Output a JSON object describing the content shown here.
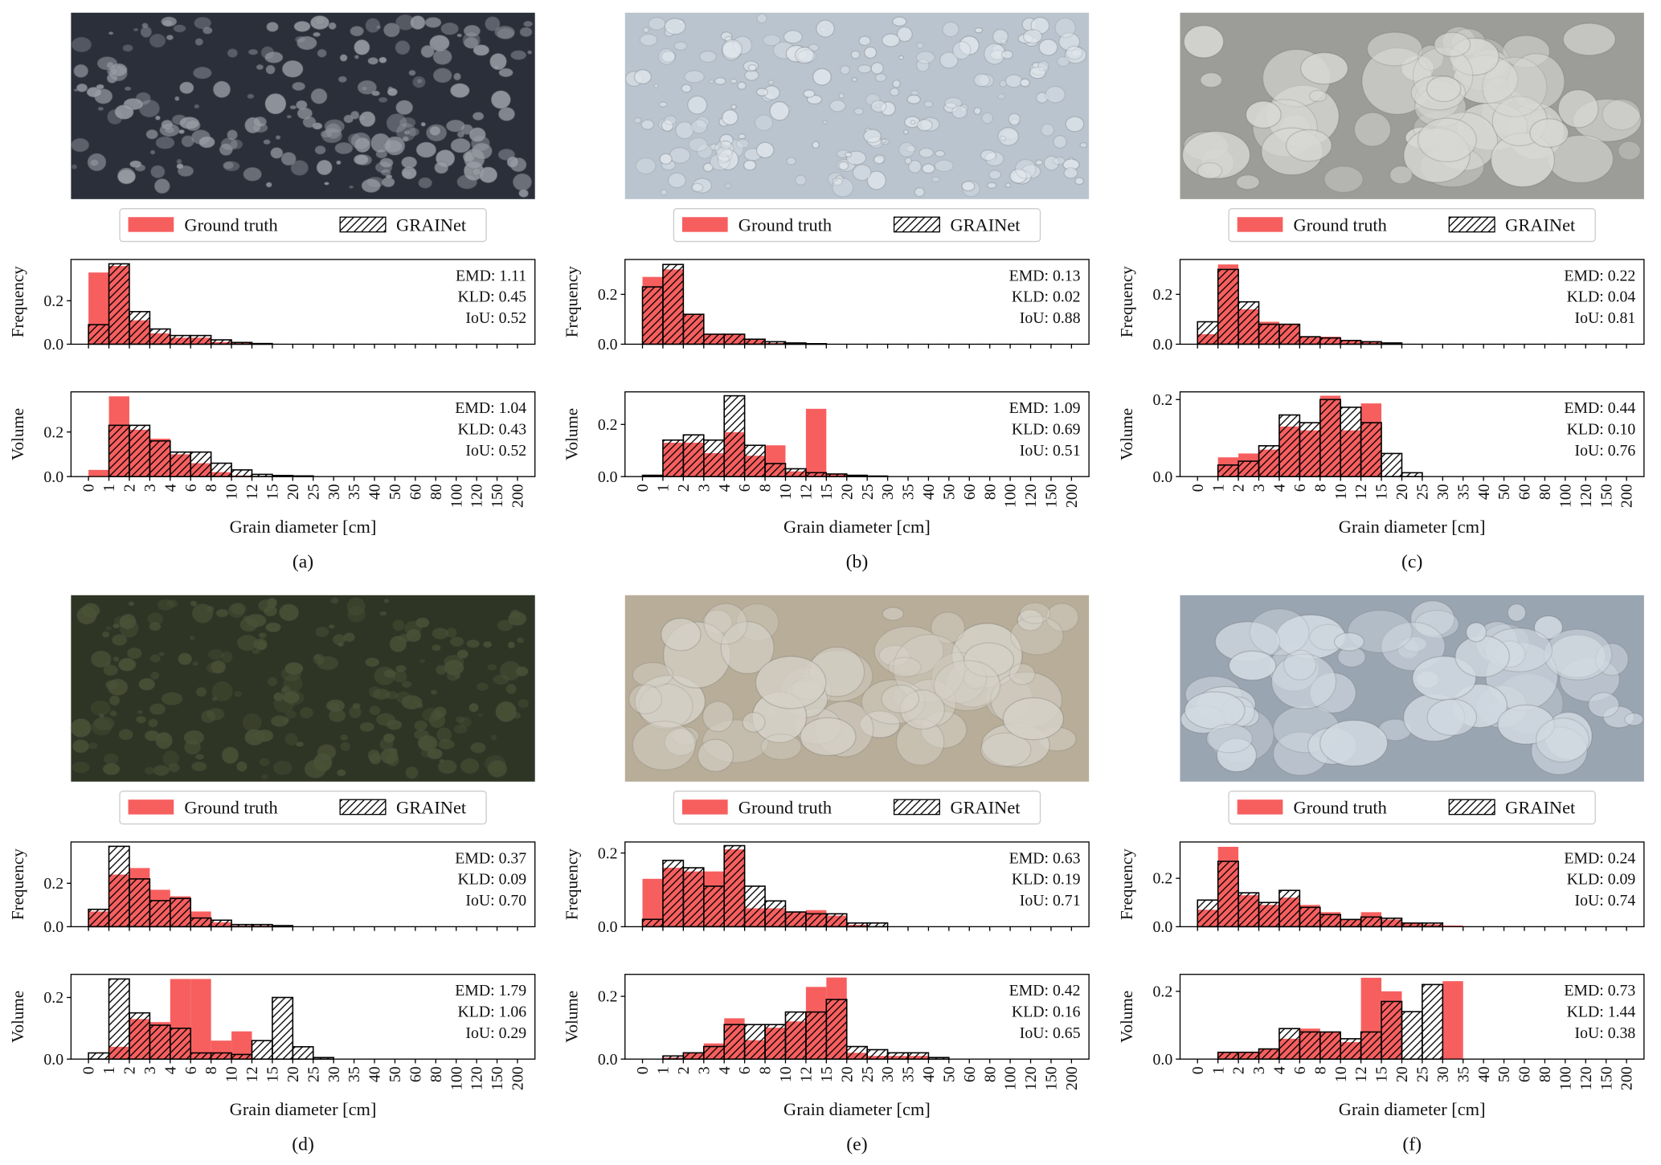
{
  "chart_data": [
    {
      "type": "histogram",
      "ylabel": "Frequency",
      "legend": true,
      "annotations": [
        "EMD: 1.11",
        "KLD: 0.45",
        "IoU: 0.52"
      ],
      "bins": [
        0,
        1,
        2,
        3,
        4,
        6,
        8,
        10,
        12,
        15,
        20,
        25,
        30,
        35,
        40,
        50,
        60,
        80,
        100,
        120,
        150,
        200
      ],
      "ylim": [
        0,
        0.39
      ],
      "yticks": [
        {
          "value": 0,
          "label": "0.0"
        },
        0.2
      ],
      "series": [
        {
          "name": "Ground truth",
          "color": "#f75f5f",
          "values": [
            0.33,
            0.36,
            0.11,
            0.05,
            0.03,
            0.03,
            0.01,
            0.005,
            0,
            0,
            0,
            0,
            0,
            0,
            0,
            0,
            0,
            0,
            0,
            0,
            0
          ]
        },
        {
          "name": "GRAINet",
          "color": "#000000",
          "hatch": "//",
          "values": [
            0.09,
            0.37,
            0.15,
            0.07,
            0.04,
            0.04,
            0.02,
            0.008,
            0.003,
            0,
            0,
            0,
            0,
            0,
            0,
            0,
            0,
            0,
            0,
            0,
            0
          ]
        }
      ]
    },
    {
      "type": "histogram",
      "ylabel": "Volume",
      "xlabel": "Grain diameter [cm]",
      "caption": "(a)",
      "annotations": [
        "EMD: 1.04",
        "KLD: 0.43",
        "IoU: 0.52"
      ],
      "bins": [
        0,
        1,
        2,
        3,
        4,
        6,
        8,
        10,
        12,
        15,
        20,
        25,
        30,
        35,
        40,
        50,
        60,
        80,
        100,
        120,
        150,
        200
      ],
      "ylim": [
        0,
        0.38
      ],
      "yticks": [
        {
          "value": 0,
          "label": "0.0"
        },
        0.2
      ],
      "series": [
        {
          "name": "Ground truth",
          "color": "#f75f5f",
          "values": [
            0.03,
            0.36,
            0.21,
            0.17,
            0.1,
            0.06,
            0.02,
            0.005,
            0,
            0,
            0,
            0,
            0,
            0,
            0,
            0,
            0,
            0,
            0,
            0,
            0
          ]
        },
        {
          "name": "GRAINet",
          "color": "#000000",
          "hatch": "//",
          "values": [
            0,
            0.23,
            0.23,
            0.16,
            0.11,
            0.11,
            0.06,
            0.03,
            0.01,
            0.005,
            0.003,
            0,
            0,
            0,
            0,
            0,
            0,
            0,
            0,
            0,
            0
          ]
        }
      ]
    },
    {
      "type": "histogram",
      "ylabel": "Frequency",
      "legend": true,
      "annotations": [
        "EMD: 0.13",
        "KLD: 0.02",
        "IoU: 0.88"
      ],
      "bins": [
        0,
        1,
        2,
        3,
        4,
        6,
        8,
        10,
        12,
        15,
        20,
        25,
        30,
        35,
        40,
        50,
        60,
        80,
        100,
        120,
        150,
        200
      ],
      "ylim": [
        0,
        0.34
      ],
      "yticks": [
        {
          "value": 0,
          "label": "0.0"
        },
        0.2
      ],
      "series": [
        {
          "name": "Ground truth",
          "color": "#f75f5f",
          "values": [
            0.27,
            0.3,
            0.12,
            0.04,
            0.04,
            0.02,
            0.005,
            0,
            0,
            0,
            0,
            0,
            0,
            0,
            0,
            0,
            0,
            0,
            0,
            0,
            0
          ]
        },
        {
          "name": "GRAINet",
          "color": "#000000",
          "hatch": "//",
          "values": [
            0.23,
            0.32,
            0.12,
            0.04,
            0.04,
            0.02,
            0.01,
            0.005,
            0.002,
            0,
            0,
            0,
            0,
            0,
            0,
            0,
            0,
            0,
            0,
            0,
            0
          ]
        }
      ]
    },
    {
      "type": "histogram",
      "ylabel": "Volume",
      "xlabel": "Grain diameter [cm]",
      "caption": "(b)",
      "annotations": [
        "EMD: 1.09",
        "KLD: 0.69",
        "IoU: 0.51"
      ],
      "bins": [
        0,
        1,
        2,
        3,
        4,
        6,
        8,
        10,
        12,
        15,
        20,
        25,
        30,
        35,
        40,
        50,
        60,
        80,
        100,
        120,
        150,
        200
      ],
      "ylim": [
        0,
        0.325
      ],
      "yticks": [
        {
          "value": 0,
          "label": "0.0"
        },
        0.2
      ],
      "series": [
        {
          "name": "Ground truth",
          "color": "#f75f5f",
          "values": [
            0.005,
            0.13,
            0.13,
            0.09,
            0.17,
            0.08,
            0.12,
            0.02,
            0.26,
            0.01,
            0,
            0,
            0,
            0,
            0,
            0,
            0,
            0,
            0,
            0,
            0
          ]
        },
        {
          "name": "GRAINet",
          "color": "#000000",
          "hatch": "//",
          "values": [
            0.005,
            0.14,
            0.16,
            0.14,
            0.31,
            0.12,
            0.05,
            0.03,
            0.015,
            0.01,
            0.005,
            0.002,
            0,
            0,
            0,
            0,
            0,
            0,
            0,
            0,
            0
          ]
        }
      ]
    },
    {
      "type": "histogram",
      "ylabel": "Frequency",
      "legend": true,
      "annotations": [
        "EMD: 0.22",
        "KLD: 0.04",
        "IoU: 0.81"
      ],
      "bins": [
        0,
        1,
        2,
        3,
        4,
        6,
        8,
        10,
        12,
        15,
        20,
        25,
        30,
        35,
        40,
        50,
        60,
        80,
        100,
        120,
        150,
        200
      ],
      "ylim": [
        0,
        0.34
      ],
      "yticks": [
        {
          "value": 0,
          "label": "0.0"
        },
        0.2
      ],
      "series": [
        {
          "name": "Ground truth",
          "color": "#f75f5f",
          "values": [
            0.04,
            0.32,
            0.14,
            0.09,
            0.08,
            0.03,
            0.03,
            0.015,
            0.01,
            0,
            0,
            0,
            0,
            0,
            0,
            0,
            0,
            0,
            0,
            0,
            0
          ]
        },
        {
          "name": "GRAINet",
          "color": "#000000",
          "hatch": "//",
          "values": [
            0.09,
            0.3,
            0.17,
            0.08,
            0.08,
            0.03,
            0.025,
            0.015,
            0.01,
            0.005,
            0,
            0,
            0,
            0,
            0,
            0,
            0,
            0,
            0,
            0,
            0
          ]
        }
      ]
    },
    {
      "type": "histogram",
      "ylabel": "Volume",
      "xlabel": "Grain diameter [cm]",
      "caption": "(c)",
      "annotations": [
        "EMD: 0.44",
        "KLD: 0.10",
        "IoU: 0.76"
      ],
      "bins": [
        0,
        1,
        2,
        3,
        4,
        6,
        8,
        10,
        12,
        15,
        20,
        25,
        30,
        35,
        40,
        50,
        60,
        80,
        100,
        120,
        150,
        200
      ],
      "ylim": [
        0,
        0.22
      ],
      "yticks": [
        {
          "value": 0,
          "label": "0.0"
        },
        0.2
      ],
      "series": [
        {
          "name": "Ground truth",
          "color": "#f75f5f",
          "values": [
            0,
            0.05,
            0.06,
            0.07,
            0.13,
            0.12,
            0.21,
            0.12,
            0.19,
            0,
            0,
            0,
            0,
            0,
            0,
            0,
            0,
            0,
            0,
            0,
            0
          ]
        },
        {
          "name": "GRAINet",
          "color": "#000000",
          "hatch": "//",
          "values": [
            0,
            0.03,
            0.04,
            0.08,
            0.16,
            0.14,
            0.2,
            0.18,
            0.14,
            0.06,
            0.01,
            0,
            0,
            0,
            0,
            0,
            0,
            0,
            0,
            0,
            0
          ]
        }
      ]
    },
    {
      "type": "histogram",
      "ylabel": "Frequency",
      "legend": true,
      "annotations": [
        "EMD: 0.37",
        "KLD: 0.09",
        "IoU: 0.70"
      ],
      "bins": [
        0,
        1,
        2,
        3,
        4,
        6,
        8,
        10,
        12,
        15,
        20,
        25,
        30,
        35,
        40,
        50,
        60,
        80,
        100,
        120,
        150,
        200
      ],
      "ylim": [
        0,
        0.39
      ],
      "yticks": [
        {
          "value": 0,
          "label": "0.0"
        },
        0.2
      ],
      "series": [
        {
          "name": "Ground truth",
          "color": "#f75f5f",
          "values": [
            0.07,
            0.24,
            0.27,
            0.17,
            0.14,
            0.07,
            0.02,
            0.005,
            0.005,
            0,
            0,
            0,
            0,
            0,
            0,
            0,
            0,
            0,
            0,
            0,
            0
          ]
        },
        {
          "name": "GRAINet",
          "color": "#000000",
          "hatch": "//",
          "values": [
            0.08,
            0.37,
            0.22,
            0.12,
            0.13,
            0.04,
            0.03,
            0.01,
            0.01,
            0.005,
            0,
            0,
            0,
            0,
            0,
            0,
            0,
            0,
            0,
            0,
            0
          ]
        }
      ]
    },
    {
      "type": "histogram",
      "ylabel": "Volume",
      "xlabel": "Grain diameter [cm]",
      "caption": "(d)",
      "annotations": [
        "EMD: 1.79",
        "KLD: 1.06",
        "IoU: 0.29"
      ],
      "bins": [
        0,
        1,
        2,
        3,
        4,
        6,
        8,
        10,
        12,
        15,
        20,
        25,
        30,
        35,
        40,
        50,
        60,
        80,
        100,
        120,
        150,
        200
      ],
      "ylim": [
        0,
        0.275
      ],
      "yticks": [
        {
          "value": 0,
          "label": "0.0"
        },
        0.2
      ],
      "series": [
        {
          "name": "Ground truth",
          "color": "#f75f5f",
          "values": [
            0,
            0.04,
            0.13,
            0.12,
            0.26,
            0.26,
            0.06,
            0.09,
            0,
            0,
            0,
            0,
            0,
            0,
            0,
            0,
            0,
            0,
            0,
            0,
            0
          ]
        },
        {
          "name": "GRAINet",
          "color": "#000000",
          "hatch": "//",
          "values": [
            0.02,
            0.26,
            0.15,
            0.11,
            0.1,
            0.02,
            0.02,
            0.015,
            0.06,
            0.2,
            0.04,
            0.005,
            0,
            0,
            0,
            0,
            0,
            0,
            0,
            0,
            0
          ]
        }
      ]
    },
    {
      "type": "histogram",
      "ylabel": "Frequency",
      "legend": true,
      "annotations": [
        "EMD: 0.63",
        "KLD: 0.19",
        "IoU: 0.71"
      ],
      "bins": [
        0,
        1,
        2,
        3,
        4,
        6,
        8,
        10,
        12,
        15,
        20,
        25,
        30,
        35,
        40,
        50,
        60,
        80,
        100,
        120,
        150,
        200
      ],
      "ylim": [
        0,
        0.23
      ],
      "yticks": [
        {
          "value": 0,
          "label": "0.0"
        },
        0.2
      ],
      "series": [
        {
          "name": "Ground truth",
          "color": "#f75f5f",
          "values": [
            0.13,
            0.16,
            0.15,
            0.15,
            0.21,
            0.05,
            0.05,
            0.04,
            0.045,
            0.03,
            0.005,
            0,
            0,
            0,
            0,
            0,
            0,
            0,
            0,
            0,
            0
          ]
        },
        {
          "name": "GRAINet",
          "color": "#000000",
          "hatch": "//",
          "values": [
            0.02,
            0.18,
            0.16,
            0.11,
            0.22,
            0.11,
            0.07,
            0.04,
            0.035,
            0.035,
            0.01,
            0.01,
            0,
            0,
            0,
            0,
            0,
            0,
            0,
            0,
            0
          ]
        }
      ]
    },
    {
      "type": "histogram",
      "ylabel": "Volume",
      "xlabel": "Grain diameter [cm]",
      "caption": "(e)",
      "annotations": [
        "EMD: 0.42",
        "KLD: 0.16",
        "IoU: 0.65"
      ],
      "bins": [
        0,
        1,
        2,
        3,
        4,
        6,
        8,
        10,
        12,
        15,
        20,
        25,
        30,
        35,
        40,
        50,
        60,
        80,
        100,
        120,
        150,
        200
      ],
      "ylim": [
        0,
        0.27
      ],
      "yticks": [
        {
          "value": 0,
          "label": "0.0"
        },
        0.2
      ],
      "series": [
        {
          "name": "Ground truth",
          "color": "#f75f5f",
          "values": [
            0,
            0.005,
            0.02,
            0.05,
            0.13,
            0.06,
            0.1,
            0.12,
            0.23,
            0.26,
            0.02,
            0.01,
            0.01,
            0.01,
            0,
            0,
            0,
            0,
            0,
            0,
            0
          ]
        },
        {
          "name": "GRAINet",
          "color": "#000000",
          "hatch": "//",
          "values": [
            0,
            0.01,
            0.02,
            0.04,
            0.11,
            0.11,
            0.11,
            0.15,
            0.15,
            0.19,
            0.04,
            0.03,
            0.02,
            0.02,
            0.005,
            0,
            0,
            0,
            0,
            0,
            0
          ]
        }
      ]
    },
    {
      "type": "histogram",
      "ylabel": "Frequency",
      "legend": true,
      "annotations": [
        "EMD: 0.24",
        "KLD: 0.09",
        "IoU: 0.74"
      ],
      "bins": [
        0,
        1,
        2,
        3,
        4,
        6,
        8,
        10,
        12,
        15,
        20,
        25,
        30,
        35,
        40,
        50,
        60,
        80,
        100,
        120,
        150,
        200
      ],
      "ylim": [
        0,
        0.35
      ],
      "yticks": [
        {
          "value": 0,
          "label": "0.0"
        },
        0.2
      ],
      "series": [
        {
          "name": "Ground truth",
          "color": "#f75f5f",
          "values": [
            0.07,
            0.33,
            0.13,
            0.09,
            0.12,
            0.09,
            0.06,
            0.03,
            0.06,
            0.03,
            0.015,
            0.01,
            0.005,
            0,
            0,
            0,
            0,
            0,
            0,
            0,
            0
          ]
        },
        {
          "name": "GRAINet",
          "color": "#000000",
          "hatch": "//",
          "values": [
            0.11,
            0.27,
            0.14,
            0.1,
            0.15,
            0.08,
            0.05,
            0.03,
            0.04,
            0.035,
            0.015,
            0.015,
            0,
            0,
            0,
            0,
            0,
            0,
            0,
            0,
            0
          ]
        }
      ]
    },
    {
      "type": "histogram",
      "ylabel": "Volume",
      "xlabel": "Grain diameter [cm]",
      "caption": "(f)",
      "annotations": [
        "EMD: 0.73",
        "KLD: 1.44",
        "IoU: 0.38"
      ],
      "bins": [
        0,
        1,
        2,
        3,
        4,
        6,
        8,
        10,
        12,
        15,
        20,
        25,
        30,
        35,
        40,
        50,
        60,
        80,
        100,
        120,
        150,
        200
      ],
      "ylim": [
        0,
        0.25
      ],
      "yticks": [
        {
          "value": 0,
          "label": "0.0"
        },
        0.2
      ],
      "series": [
        {
          "name": "Ground truth",
          "color": "#f75f5f",
          "values": [
            0,
            0.02,
            0.02,
            0.03,
            0.06,
            0.09,
            0.08,
            0.05,
            0.24,
            0.2,
            0,
            0,
            0.23,
            0,
            0,
            0,
            0,
            0,
            0,
            0,
            0
          ]
        },
        {
          "name": "GRAINet",
          "color": "#000000",
          "hatch": "//",
          "values": [
            0,
            0.02,
            0.02,
            0.03,
            0.09,
            0.08,
            0.08,
            0.06,
            0.08,
            0.17,
            0.14,
            0.22,
            0,
            0,
            0,
            0,
            0,
            0,
            0,
            0,
            0
          ]
        }
      ]
    }
  ]
}
